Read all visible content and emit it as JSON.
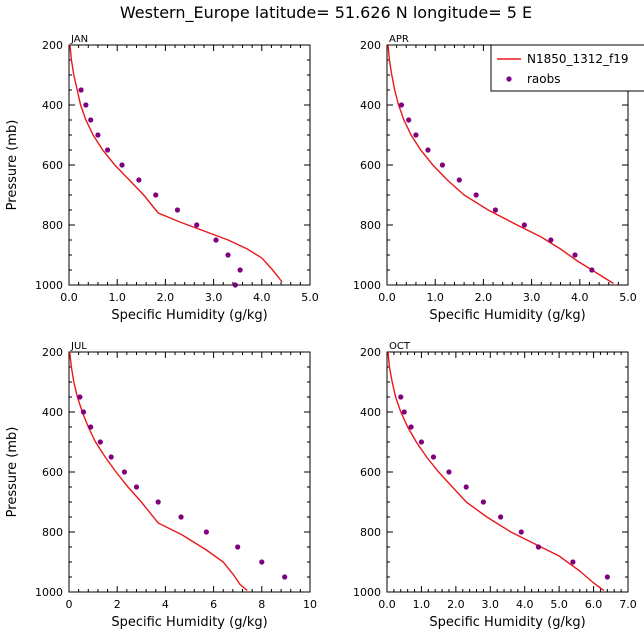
{
  "figure": {
    "title": "Western_Europe  latitude= 51.626 N longitude= 5 E"
  },
  "chart_data": [
    {
      "type": "line",
      "panel_label": "JAN",
      "xlabel": "Specific Humidity (g/kg)",
      "ylabel": "Pressure (mb)",
      "xlim": [
        0,
        5
      ],
      "ylim": [
        1000,
        200
      ],
      "x_ticks": [
        "0.0",
        "1.0",
        "2.0",
        "3.0",
        "4.0",
        "5.0"
      ],
      "y_ticks": [
        "200",
        "400",
        "600",
        "800",
        "1000"
      ],
      "series": [
        {
          "name": "N1850_1312_f19",
          "style": "line",
          "color": "#e8191b",
          "points": [
            [
              0.02,
              200
            ],
            [
              0.05,
              250
            ],
            [
              0.1,
              300
            ],
            [
              0.17,
              350
            ],
            [
              0.24,
              400
            ],
            [
              0.35,
              450
            ],
            [
              0.5,
              500
            ],
            [
              0.7,
              550
            ],
            [
              0.95,
              600
            ],
            [
              1.25,
              650
            ],
            [
              1.55,
              700
            ],
            [
              1.85,
              760
            ],
            [
              2.3,
              790
            ],
            [
              2.8,
              820
            ],
            [
              3.3,
              850
            ],
            [
              3.7,
              880
            ],
            [
              4.0,
              910
            ],
            [
              4.2,
              945
            ],
            [
              4.35,
              975
            ],
            [
              4.42,
              990
            ]
          ]
        },
        {
          "name": "raobs",
          "style": "markers",
          "color": "#800080",
          "points": [
            [
              0.25,
              350
            ],
            [
              0.35,
              400
            ],
            [
              0.45,
              450
            ],
            [
              0.6,
              500
            ],
            [
              0.8,
              550
            ],
            [
              1.1,
              600
            ],
            [
              1.45,
              650
            ],
            [
              1.8,
              700
            ],
            [
              2.25,
              750
            ],
            [
              2.65,
              800
            ],
            [
              3.05,
              850
            ],
            [
              3.3,
              900
            ],
            [
              3.55,
              950
            ],
            [
              3.45,
              1000
            ]
          ]
        }
      ]
    },
    {
      "type": "line",
      "panel_label": "APR",
      "xlabel": "Specific Humidity (g/kg)",
      "ylabel": "",
      "xlim": [
        0,
        5
      ],
      "ylim": [
        1000,
        200
      ],
      "x_ticks": [
        "0.0",
        "1.0",
        "2.0",
        "3.0",
        "4.0",
        "5.0"
      ],
      "y_ticks": [
        "200",
        "400",
        "600",
        "800",
        "1000"
      ],
      "legend": {
        "placement": "top-right",
        "entries": [
          {
            "label": "N1850_1312_f19",
            "style": "line",
            "color": "#e8191b"
          },
          {
            "label": "raobs",
            "style": "markers",
            "color": "#800080"
          }
        ]
      },
      "series": [
        {
          "name": "N1850_1312_f19",
          "style": "line",
          "color": "#e8191b",
          "points": [
            [
              0.02,
              200
            ],
            [
              0.05,
              250
            ],
            [
              0.1,
              300
            ],
            [
              0.16,
              350
            ],
            [
              0.24,
              400
            ],
            [
              0.35,
              450
            ],
            [
              0.5,
              500
            ],
            [
              0.7,
              550
            ],
            [
              0.95,
              600
            ],
            [
              1.25,
              650
            ],
            [
              1.6,
              700
            ],
            [
              2.1,
              750
            ],
            [
              2.7,
              800
            ],
            [
              3.2,
              840
            ],
            [
              3.6,
              880
            ],
            [
              3.95,
              920
            ],
            [
              4.25,
              950
            ],
            [
              4.5,
              975
            ],
            [
              4.7,
              995
            ]
          ]
        },
        {
          "name": "raobs",
          "style": "markers",
          "color": "#800080",
          "points": [
            [
              0.3,
              400
            ],
            [
              0.45,
              450
            ],
            [
              0.6,
              500
            ],
            [
              0.85,
              550
            ],
            [
              1.15,
              600
            ],
            [
              1.5,
              650
            ],
            [
              1.85,
              700
            ],
            [
              2.25,
              750
            ],
            [
              2.85,
              800
            ],
            [
              3.4,
              850
            ],
            [
              3.9,
              900
            ],
            [
              4.25,
              950
            ]
          ]
        }
      ]
    },
    {
      "type": "line",
      "panel_label": "JUL",
      "xlabel": "Specific Humidity (g/kg)",
      "ylabel": "Pressure (mb)",
      "xlim": [
        0,
        10
      ],
      "ylim": [
        1000,
        200
      ],
      "x_ticks": [
        "0",
        "2",
        "4",
        "6",
        "8",
        "10"
      ],
      "y_ticks": [
        "200",
        "400",
        "600",
        "800",
        "1000"
      ],
      "series": [
        {
          "name": "N1850_1312_f19",
          "style": "line",
          "color": "#e8191b",
          "points": [
            [
              0.03,
              200
            ],
            [
              0.1,
              250
            ],
            [
              0.2,
              300
            ],
            [
              0.35,
              350
            ],
            [
              0.55,
              400
            ],
            [
              0.8,
              450
            ],
            [
              1.1,
              500
            ],
            [
              1.5,
              550
            ],
            [
              1.95,
              600
            ],
            [
              2.45,
              650
            ],
            [
              3.0,
              700
            ],
            [
              3.7,
              770
            ],
            [
              4.7,
              810
            ],
            [
              5.7,
              860
            ],
            [
              6.4,
              900
            ],
            [
              6.8,
              940
            ],
            [
              7.1,
              975
            ],
            [
              7.4,
              995
            ]
          ]
        },
        {
          "name": "raobs",
          "style": "markers",
          "color": "#800080",
          "points": [
            [
              0.45,
              350
            ],
            [
              0.6,
              400
            ],
            [
              0.9,
              450
            ],
            [
              1.3,
              500
            ],
            [
              1.75,
              550
            ],
            [
              2.3,
              600
            ],
            [
              2.8,
              650
            ],
            [
              3.7,
              700
            ],
            [
              4.65,
              750
            ],
            [
              5.7,
              800
            ],
            [
              7.0,
              850
            ],
            [
              8.0,
              900
            ],
            [
              8.95,
              950
            ]
          ]
        }
      ]
    },
    {
      "type": "line",
      "panel_label": "OCT",
      "xlabel": "Specific Humidity (g/kg)",
      "ylabel": "",
      "xlim": [
        0,
        7
      ],
      "ylim": [
        1000,
        200
      ],
      "x_ticks": [
        "0.0",
        "1.0",
        "2.0",
        "3.0",
        "4.0",
        "5.0",
        "6.0",
        "7.0"
      ],
      "y_ticks": [
        "200",
        "400",
        "600",
        "800",
        "1000"
      ],
      "series": [
        {
          "name": "N1850_1312_f19",
          "style": "line",
          "color": "#e8191b",
          "points": [
            [
              0.03,
              200
            ],
            [
              0.07,
              250
            ],
            [
              0.15,
              300
            ],
            [
              0.25,
              350
            ],
            [
              0.4,
              400
            ],
            [
              0.6,
              450
            ],
            [
              0.85,
              500
            ],
            [
              1.15,
              550
            ],
            [
              1.5,
              600
            ],
            [
              1.9,
              650
            ],
            [
              2.3,
              700
            ],
            [
              2.9,
              750
            ],
            [
              3.6,
              800
            ],
            [
              4.3,
              840
            ],
            [
              5.0,
              880
            ],
            [
              5.6,
              930
            ],
            [
              6.0,
              970
            ],
            [
              6.3,
              995
            ]
          ]
        },
        {
          "name": "raobs",
          "style": "markers",
          "color": "#800080",
          "points": [
            [
              0.4,
              350
            ],
            [
              0.5,
              400
            ],
            [
              0.7,
              450
            ],
            [
              1.0,
              500
            ],
            [
              1.35,
              550
            ],
            [
              1.8,
              600
            ],
            [
              2.3,
              650
            ],
            [
              2.8,
              700
            ],
            [
              3.3,
              750
            ],
            [
              3.9,
              800
            ],
            [
              4.4,
              850
            ],
            [
              5.4,
              900
            ],
            [
              6.4,
              950
            ]
          ]
        }
      ]
    }
  ]
}
